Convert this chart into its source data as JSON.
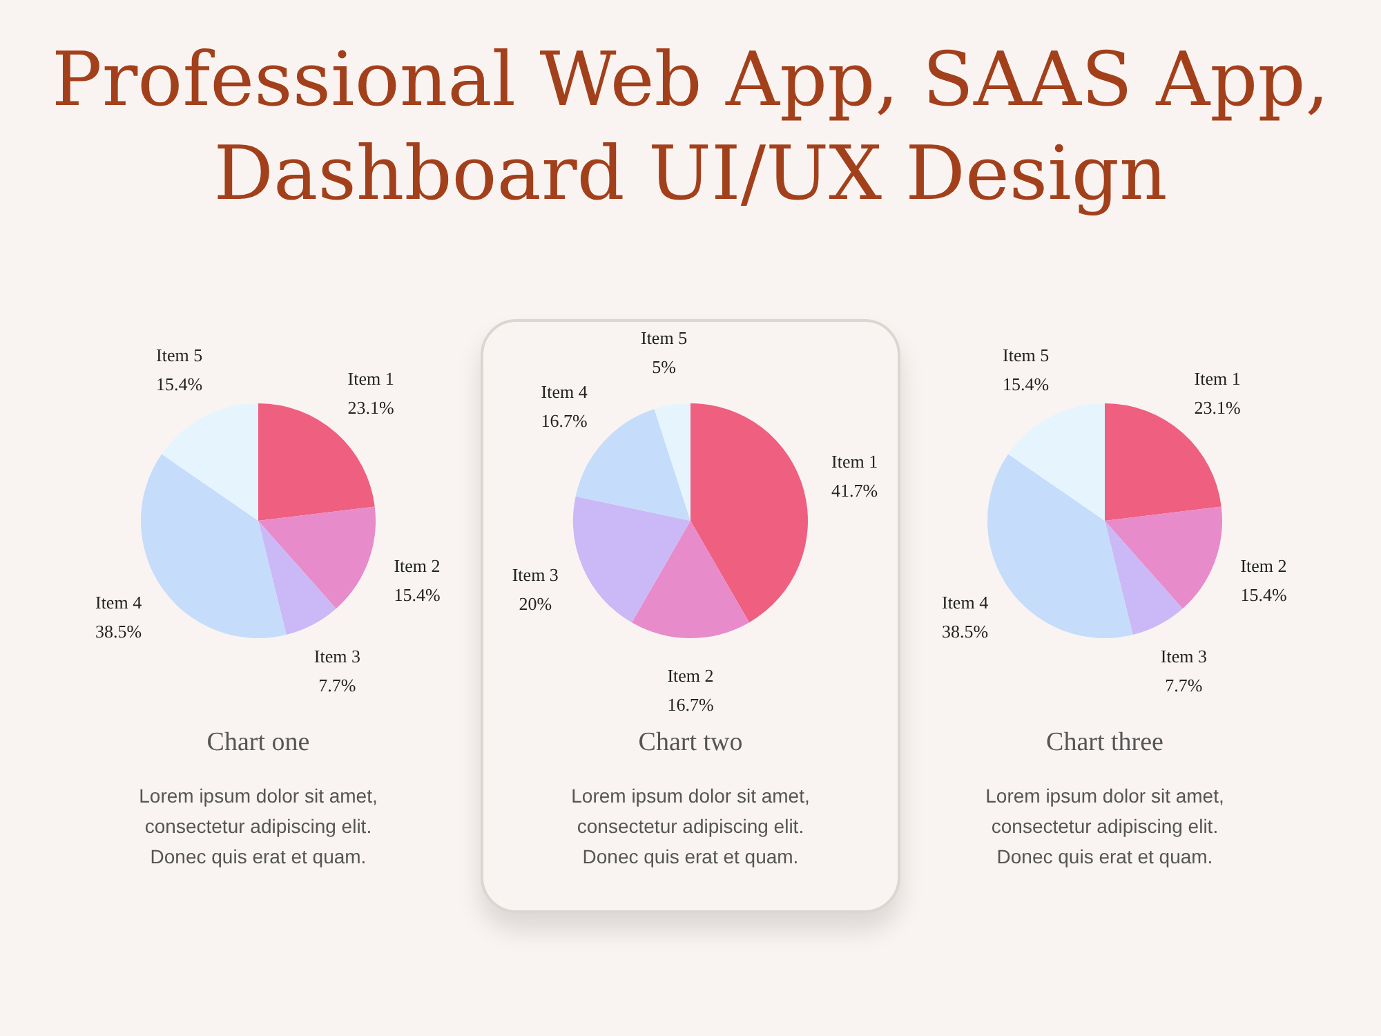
{
  "chart_data": [
    {
      "type": "pie",
      "title": "Professional Web App, SAAS App, Dashboard UI/UX Design",
      "subtitle": "Chart one",
      "categories": [
        "Item 1",
        "Item 2",
        "Item 3",
        "Item 4",
        "Item 5"
      ],
      "values": [
        23.1,
        15.4,
        7.7,
        38.5,
        15.4
      ],
      "value_labels": [
        "23.1%",
        "15.4%",
        "7.7%",
        "38.5%",
        "15.4%"
      ],
      "colors": [
        "#ef5f7f",
        "#e78bcb",
        "#cbb8f6",
        "#c5dcfb",
        "#e6f5fd"
      ],
      "legend": false,
      "annotations": [
        "Lorem ipsum dolor sit amet,",
        "consectetur adipiscing elit.",
        "Donec quis erat et quam."
      ]
    },
    {
      "type": "pie",
      "subtitle": "Chart two",
      "categories": [
        "Item 1",
        "Item 2",
        "Item 3",
        "Item 4",
        "Item 5"
      ],
      "values": [
        41.7,
        16.7,
        20,
        16.7,
        5
      ],
      "value_labels": [
        "41.7%",
        "16.7%",
        "20%",
        "16.7%",
        "5%"
      ],
      "colors": [
        "#ef5f7f",
        "#e78bcb",
        "#cbb8f6",
        "#c5dcfb",
        "#e6f5fd"
      ],
      "legend": false,
      "annotations": [
        "Lorem ipsum dolor sit amet,",
        "consectetur adipiscing elit.",
        "Donec quis erat et quam."
      ]
    },
    {
      "type": "pie",
      "subtitle": "Chart three",
      "categories": [
        "Item 1",
        "Item 2",
        "Item 3",
        "Item 4",
        "Item 5"
      ],
      "values": [
        23.1,
        15.4,
        7.7,
        38.5,
        15.4
      ],
      "value_labels": [
        "23.1%",
        "15.4%",
        "7.7%",
        "38.5%",
        "15.4%"
      ],
      "colors": [
        "#ef5f7f",
        "#e78bcb",
        "#cbb8f6",
        "#c5dcfb",
        "#e6f5fd"
      ],
      "legend": false,
      "annotations": [
        "Lorem ipsum dolor sit amet,",
        "consectetur adipiscing elit.",
        "Donec quis erat et quam."
      ]
    }
  ]
}
